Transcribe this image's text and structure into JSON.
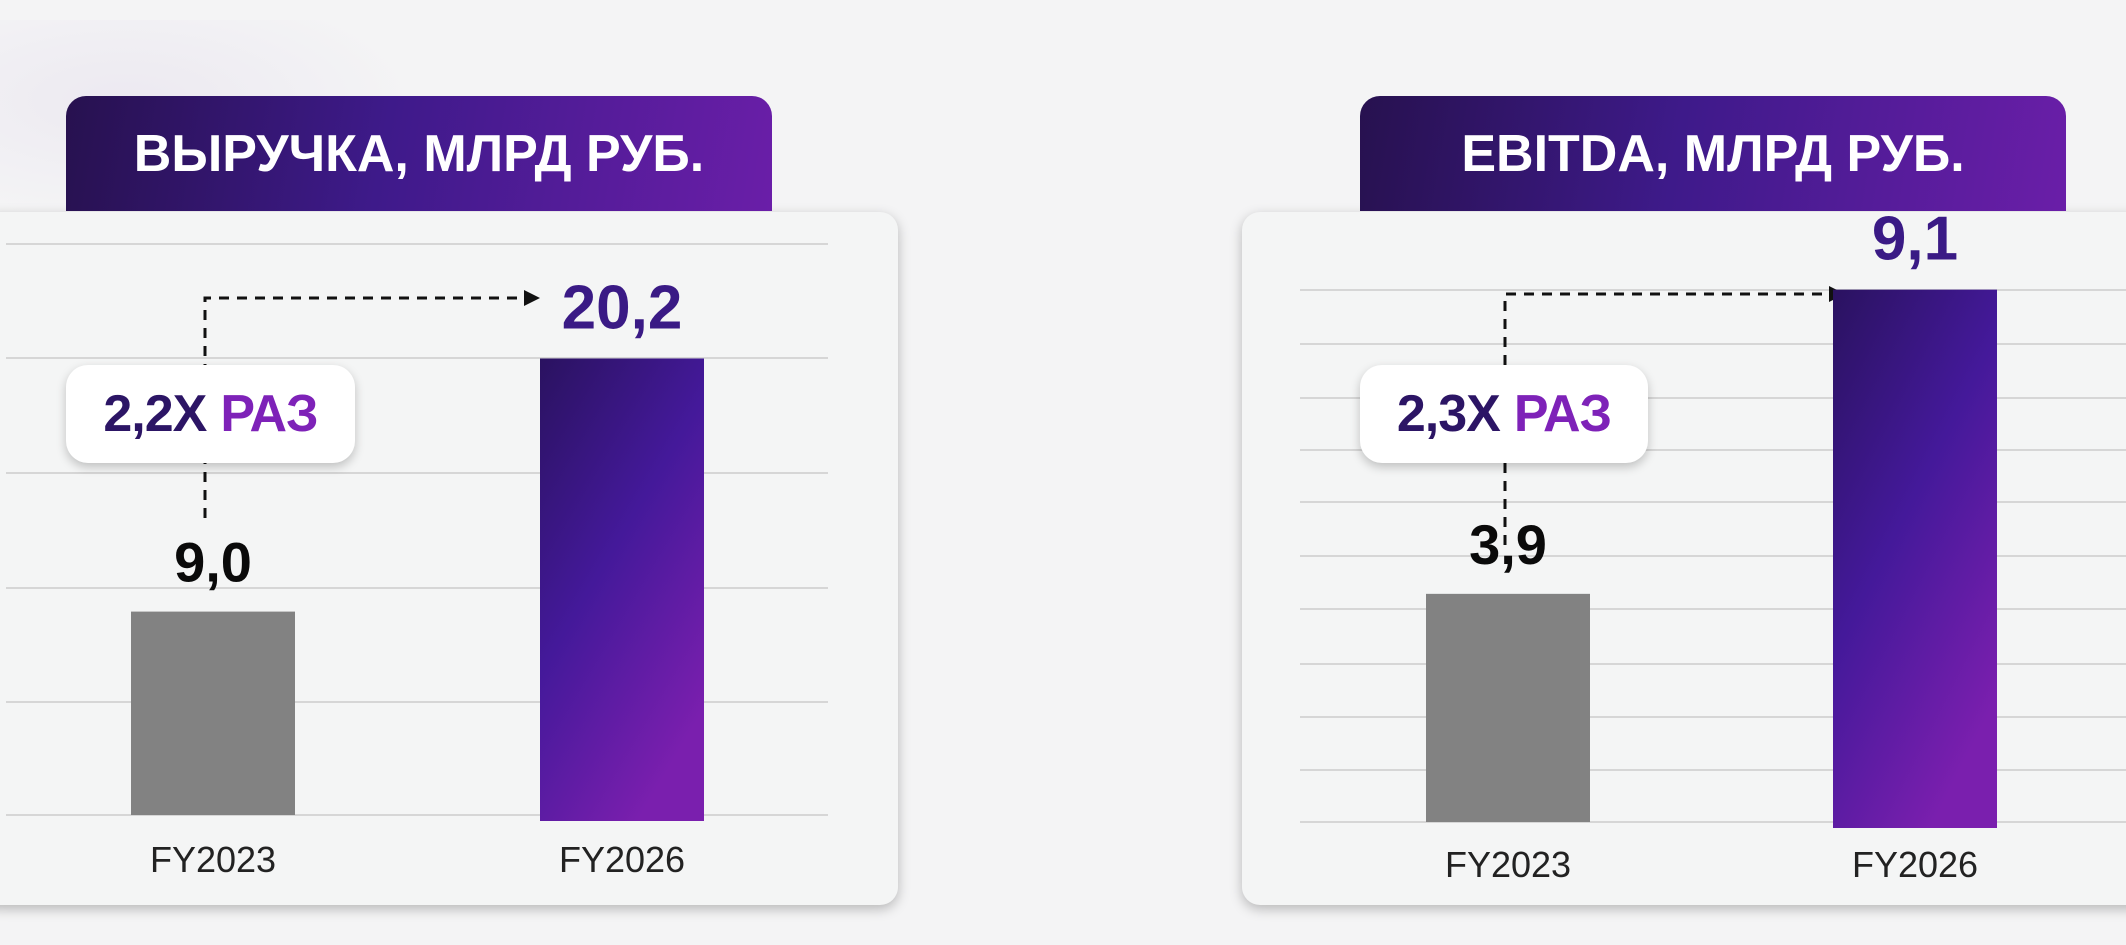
{
  "colors": {
    "base_bar": "#828282",
    "target_bar_dark": "#2a1260",
    "target_bar_mid": "#44199a",
    "target_bar_light": "#7a1fae",
    "value_dark": "#0a0a0a",
    "value_accent": "#3a1a85"
  },
  "chart_data": [
    {
      "type": "bar",
      "title": "ВЫРУЧКА, МЛРД РУБ.",
      "categories": [
        "FY2023",
        "FY2026"
      ],
      "values": [
        9.0,
        20.2
      ],
      "value_labels": [
        "9,0",
        "20,2"
      ],
      "ylim": [
        0,
        25
      ],
      "grid": true,
      "growth_label": {
        "multiplier": "2,2Х",
        "unit": "РАЗ"
      }
    },
    {
      "type": "bar",
      "title": "EBITDA, МЛРД РУБ.",
      "categories": [
        "FY2023",
        "FY2026"
      ],
      "values": [
        3.9,
        9.1
      ],
      "value_labels": [
        "3,9",
        "9,1"
      ],
      "ylim": [
        0,
        10
      ],
      "grid": true,
      "growth_label": {
        "multiplier": "2,3Х",
        "unit": "РАЗ"
      }
    }
  ]
}
